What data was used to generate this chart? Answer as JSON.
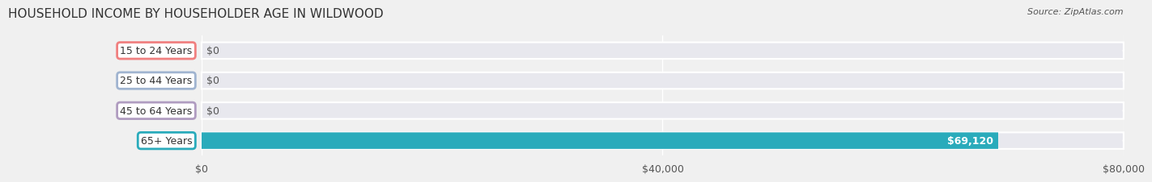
{
  "title": "HOUSEHOLD INCOME BY HOUSEHOLDER AGE IN WILDWOOD",
  "source": "Source: ZipAtlas.com",
  "categories": [
    "15 to 24 Years",
    "25 to 44 Years",
    "45 to 64 Years",
    "65+ Years"
  ],
  "values": [
    0,
    0,
    0,
    69120
  ],
  "bar_colors": [
    "#f08080",
    "#a0b4d0",
    "#b09cc0",
    "#2aabbb"
  ],
  "label_colors": [
    "#f08080",
    "#a0b4d0",
    "#b09cc0",
    "#2aabbb"
  ],
  "value_labels": [
    "$0",
    "$0",
    "$0",
    "$69,120"
  ],
  "xlim": [
    0,
    80000
  ],
  "xticks": [
    0,
    40000,
    80000
  ],
  "xtick_labels": [
    "$0",
    "$40,000",
    "$80,000"
  ],
  "background_color": "#f0f0f0",
  "bar_bg_color": "#e8e8ee",
  "title_fontsize": 11,
  "source_fontsize": 8,
  "tick_fontsize": 9,
  "label_fontsize": 9,
  "value_fontsize": 9
}
